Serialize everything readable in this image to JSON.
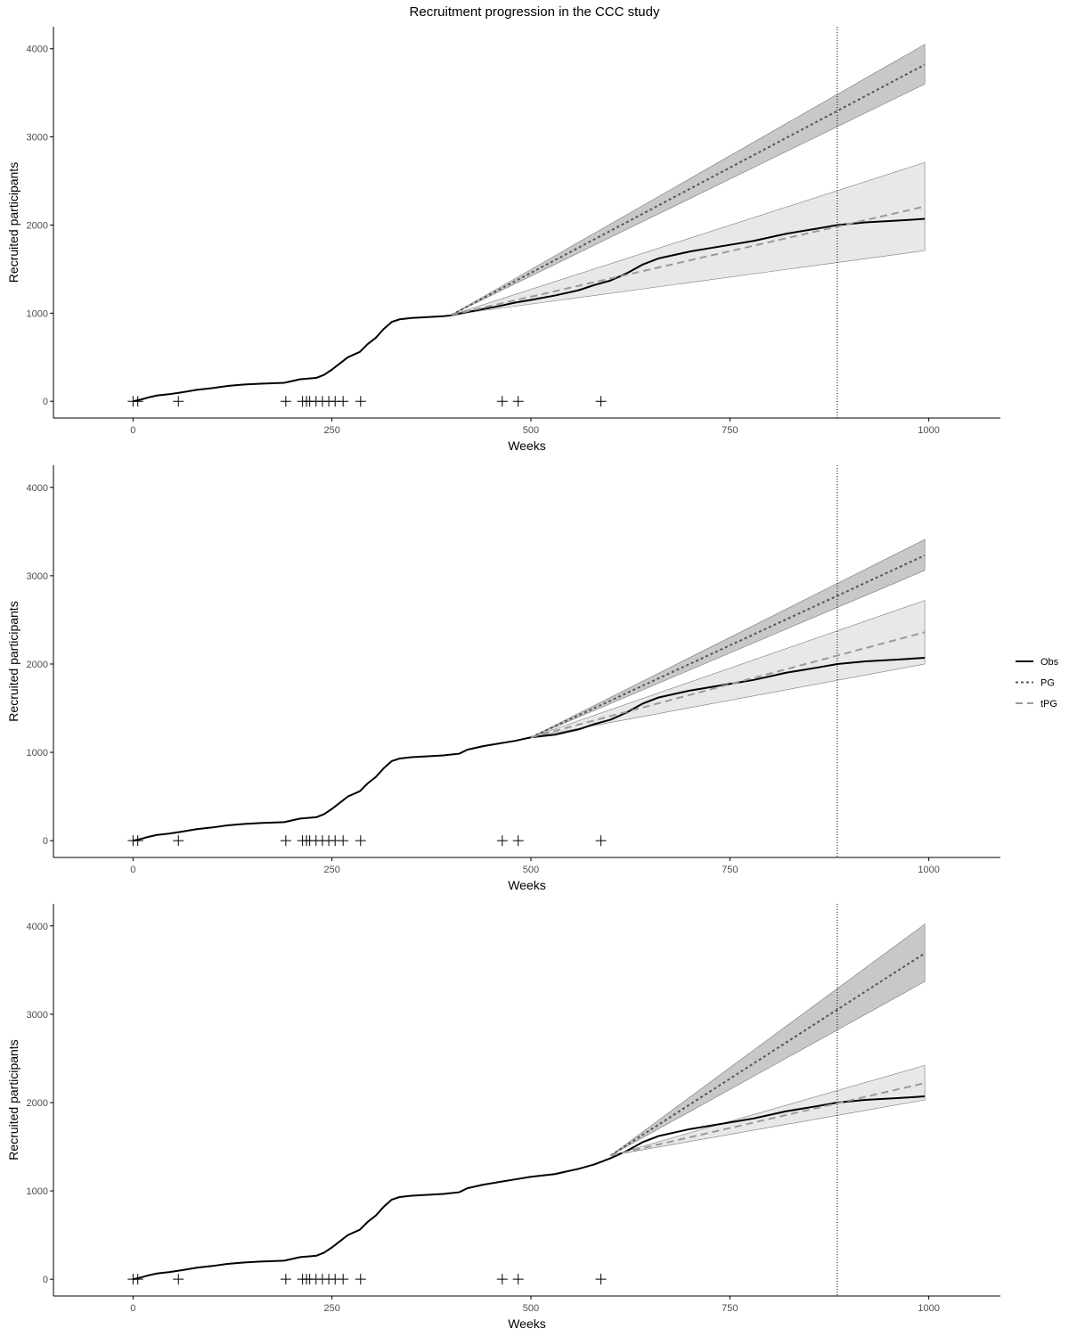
{
  "title": "Recruitment progression in the CCC study",
  "legend": {
    "position": "right",
    "items": [
      {
        "key": "obs",
        "label": "Obs"
      },
      {
        "key": "pg",
        "label": "PG"
      },
      {
        "key": "tpg",
        "label": "tPG"
      }
    ]
  },
  "colors": {
    "obs": "#000000",
    "pg": "#555555",
    "tpg": "#9a9a9a",
    "pg_band": "#c8c8c8",
    "tpg_band": "#e8e8e8",
    "axis": "#000000",
    "marker": "#000000"
  },
  "chart_data": [
    {
      "type": "line",
      "panel": 1,
      "xlabel": "Weeks",
      "ylabel": "Recruited participants",
      "xlim": [
        -100,
        1090
      ],
      "ylim": [
        -190,
        4250
      ],
      "xticks": [
        0,
        250,
        500,
        750,
        1000
      ],
      "yticks": [
        0,
        1000,
        2000,
        3000,
        4000
      ],
      "grid": false,
      "vline_x": 885,
      "markers_x": [
        0,
        6,
        57,
        192,
        213,
        218,
        222,
        230,
        238,
        246,
        254,
        264,
        286,
        464,
        484,
        588
      ],
      "series": [
        {
          "name": "Obs",
          "x": [
            0,
            10,
            20,
            30,
            45,
            60,
            80,
            100,
            120,
            140,
            160,
            190,
            200,
            210,
            230,
            240,
            250,
            260,
            270,
            285,
            295,
            305,
            315,
            325,
            335,
            350,
            370,
            390,
            400,
            430,
            460,
            480,
            500,
            530,
            560,
            580,
            600,
            620,
            640,
            660,
            700,
            740,
            780,
            820,
            860,
            885,
            920,
            960,
            995
          ],
          "y": [
            0,
            20,
            45,
            65,
            80,
            100,
            130,
            150,
            175,
            190,
            200,
            210,
            230,
            250,
            265,
            300,
            360,
            430,
            500,
            560,
            650,
            720,
            820,
            900,
            930,
            945,
            955,
            965,
            975,
            1030,
            1080,
            1120,
            1150,
            1200,
            1260,
            1320,
            1370,
            1450,
            1550,
            1620,
            1700,
            1760,
            1820,
            1900,
            1960,
            2000,
            2030,
            2050,
            2070
          ]
        },
        {
          "name": "PG",
          "x": [
            400,
            995
          ],
          "y": [
            980,
            3820
          ],
          "lo": [
            980,
            3600
          ],
          "hi": [
            980,
            4050
          ]
        },
        {
          "name": "tPG",
          "x": [
            400,
            995
          ],
          "y": [
            980,
            2210
          ],
          "lo": [
            980,
            1710
          ],
          "hi": [
            980,
            2710
          ]
        }
      ]
    },
    {
      "type": "line",
      "panel": 2,
      "xlabel": "Weeks",
      "ylabel": "Recruited participants",
      "xlim": [
        -100,
        1090
      ],
      "ylim": [
        -190,
        4250
      ],
      "xticks": [
        0,
        250,
        500,
        750,
        1000
      ],
      "yticks": [
        0,
        1000,
        2000,
        3000,
        4000
      ],
      "grid": false,
      "vline_x": 885,
      "markers_x": [
        0,
        6,
        57,
        192,
        213,
        218,
        222,
        230,
        238,
        246,
        254,
        264,
        286,
        464,
        484,
        588
      ],
      "series": [
        {
          "name": "Obs",
          "x": [
            0,
            10,
            20,
            30,
            45,
            60,
            80,
            100,
            120,
            140,
            160,
            190,
            200,
            210,
            230,
            240,
            250,
            260,
            270,
            285,
            295,
            305,
            315,
            325,
            335,
            350,
            370,
            390,
            410,
            420,
            440,
            460,
            480,
            500,
            530,
            560,
            580,
            600,
            620,
            640,
            660,
            700,
            740,
            780,
            820,
            860,
            885,
            920,
            960,
            995
          ],
          "y": [
            0,
            20,
            45,
            65,
            80,
            100,
            130,
            150,
            175,
            190,
            200,
            210,
            230,
            250,
            265,
            300,
            360,
            430,
            500,
            560,
            650,
            720,
            820,
            900,
            930,
            945,
            955,
            965,
            985,
            1030,
            1070,
            1100,
            1130,
            1170,
            1200,
            1260,
            1320,
            1370,
            1450,
            1550,
            1620,
            1700,
            1760,
            1820,
            1900,
            1960,
            2000,
            2030,
            2050,
            2070
          ]
        },
        {
          "name": "PG",
          "x": [
            500,
            995
          ],
          "y": [
            1170,
            3230
          ],
          "lo": [
            1170,
            3060
          ],
          "hi": [
            1170,
            3410
          ]
        },
        {
          "name": "tPG",
          "x": [
            500,
            995
          ],
          "y": [
            1170,
            2360
          ],
          "lo": [
            1170,
            2000
          ],
          "hi": [
            1170,
            2720
          ]
        }
      ]
    },
    {
      "type": "line",
      "panel": 3,
      "xlabel": "Weeks",
      "ylabel": "Recruited participants",
      "xlim": [
        -100,
        1090
      ],
      "ylim": [
        -190,
        4250
      ],
      "xticks": [
        0,
        250,
        500,
        750,
        1000
      ],
      "yticks": [
        0,
        1000,
        2000,
        3000,
        4000
      ],
      "grid": false,
      "vline_x": 885,
      "markers_x": [
        0,
        6,
        57,
        192,
        213,
        218,
        222,
        230,
        238,
        246,
        254,
        264,
        286,
        464,
        484,
        588
      ],
      "series": [
        {
          "name": "Obs",
          "x": [
            0,
            10,
            20,
            30,
            45,
            60,
            80,
            100,
            120,
            140,
            160,
            190,
            200,
            210,
            230,
            240,
            250,
            260,
            270,
            285,
            295,
            305,
            315,
            325,
            335,
            350,
            370,
            390,
            410,
            420,
            440,
            460,
            480,
            500,
            530,
            560,
            580,
            600,
            620,
            640,
            660,
            700,
            740,
            780,
            820,
            860,
            885,
            920,
            960,
            995
          ],
          "y": [
            0,
            20,
            45,
            65,
            80,
            100,
            130,
            150,
            175,
            190,
            200,
            210,
            230,
            250,
            265,
            300,
            360,
            430,
            500,
            560,
            650,
            720,
            820,
            900,
            930,
            945,
            955,
            965,
            985,
            1030,
            1070,
            1100,
            1130,
            1160,
            1190,
            1250,
            1300,
            1370,
            1450,
            1550,
            1620,
            1700,
            1760,
            1820,
            1900,
            1960,
            2000,
            2030,
            2050,
            2070
          ]
        },
        {
          "name": "PG",
          "x": [
            600,
            995
          ],
          "y": [
            1400,
            3690
          ],
          "lo": [
            1400,
            3370
          ],
          "hi": [
            1400,
            4020
          ]
        },
        {
          "name": "tPG",
          "x": [
            600,
            995
          ],
          "y": [
            1400,
            2220
          ],
          "lo": [
            1400,
            2030
          ],
          "hi": [
            1400,
            2420
          ]
        }
      ]
    }
  ]
}
